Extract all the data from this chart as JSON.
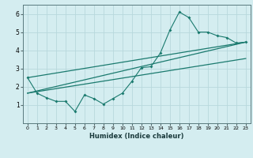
{
  "xlabel": "Humidex (Indice chaleur)",
  "bg_color": "#d4edf0",
  "grid_color": "#b8d8dc",
  "line_color": "#1a7a6e",
  "xlim": [
    -0.5,
    23.5
  ],
  "ylim": [
    0,
    6.5
  ],
  "xticks": [
    0,
    1,
    2,
    3,
    4,
    5,
    6,
    7,
    8,
    9,
    10,
    11,
    12,
    13,
    14,
    15,
    16,
    17,
    18,
    19,
    20,
    21,
    22,
    23
  ],
  "yticks": [
    1,
    2,
    3,
    4,
    5,
    6
  ],
  "jagged_x": [
    0,
    1,
    2,
    3,
    4,
    5,
    6,
    7,
    8,
    9,
    10,
    11,
    12,
    13,
    14,
    15,
    16,
    17,
    18,
    19,
    20,
    21,
    22,
    23
  ],
  "jagged_y": [
    2.5,
    1.65,
    1.4,
    1.2,
    1.2,
    0.65,
    1.55,
    1.35,
    1.05,
    1.35,
    1.65,
    2.3,
    3.05,
    3.1,
    3.85,
    5.1,
    6.1,
    5.8,
    5.0,
    5.0,
    4.8,
    4.7,
    4.4,
    4.45
  ],
  "line1_x": [
    0,
    23
  ],
  "line1_y": [
    1.65,
    4.45
  ],
  "line2_x": [
    0,
    23
  ],
  "line2_y": [
    2.5,
    4.45
  ],
  "line3_x": [
    0,
    23
  ],
  "line3_y": [
    1.65,
    3.55
  ]
}
